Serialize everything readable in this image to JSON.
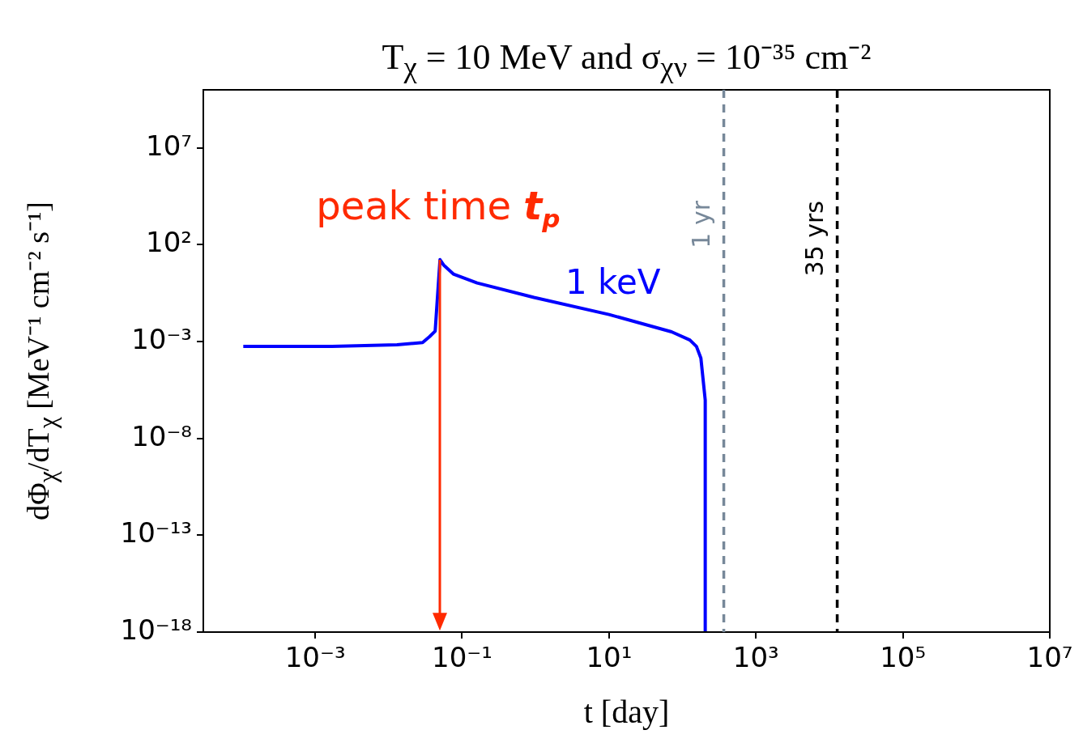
{
  "chart_data": {
    "type": "line",
    "title": "T$_{χ}$ = 10 MeV and σ$_{χν}$ = 10⁻³⁵ cm⁻²",
    "xlabel": "t [day]",
    "ylabel": "dΦ$_{χ}$/dT$_{χ}$ [MeV⁻¹ cm⁻² s⁻¹]",
    "log": "xy",
    "grid": false,
    "legend": false,
    "xlim": [
      3e-05,
      10000000.0
    ],
    "ylim": [
      1e-18,
      10000000000.0
    ],
    "xticks": [
      {
        "value": 0.001,
        "label": "10⁻³"
      },
      {
        "value": 0.1,
        "label": "10⁻¹"
      },
      {
        "value": 10,
        "label": "10¹"
      },
      {
        "value": 1000,
        "label": "10³"
      },
      {
        "value": 100000,
        "label": "10⁵"
      },
      {
        "value": 10000000,
        "label": "10⁷"
      }
    ],
    "yticks": [
      {
        "value": 1e-18,
        "label": "10⁻¹⁸"
      },
      {
        "value": 1e-13,
        "label": "10⁻¹³"
      },
      {
        "value": 1e-08,
        "label": "10⁻⁸"
      },
      {
        "value": 0.001,
        "label": "10⁻³"
      },
      {
        "value": 100,
        "label": "10²"
      },
      {
        "value": 10000000,
        "label": "10⁷"
      }
    ],
    "series": [
      {
        "name": "1 keV",
        "color": "#0000ff",
        "x": [
          0.000105,
          0.0017,
          0.013,
          0.029,
          0.036,
          0.043,
          0.05,
          0.056,
          0.076,
          0.16,
          0.95,
          10,
          71,
          126,
          155,
          178,
          204,
          204
        ],
        "values": [
          0.00056,
          0.00056,
          0.00068,
          0.0009,
          0.0018,
          0.0035,
          17,
          9,
          3.1,
          1.07,
          0.19,
          0.025,
          0.0032,
          0.0012,
          0.00056,
          0.00014,
          9.5e-07,
          1e-18
        ]
      }
    ],
    "ref_lines": [
      {
        "axis": "x",
        "value": 365,
        "label": "1 yr",
        "color": "#778899",
        "line_style": "dashed"
      },
      {
        "axis": "x",
        "value": 12775,
        "label": "35 yrs",
        "color": "#000000",
        "line_style": "dashed"
      }
    ],
    "annotations": [
      {
        "text": "peak time t$_{p}$",
        "x": 0.05,
        "y": 17
      }
    ]
  }
}
